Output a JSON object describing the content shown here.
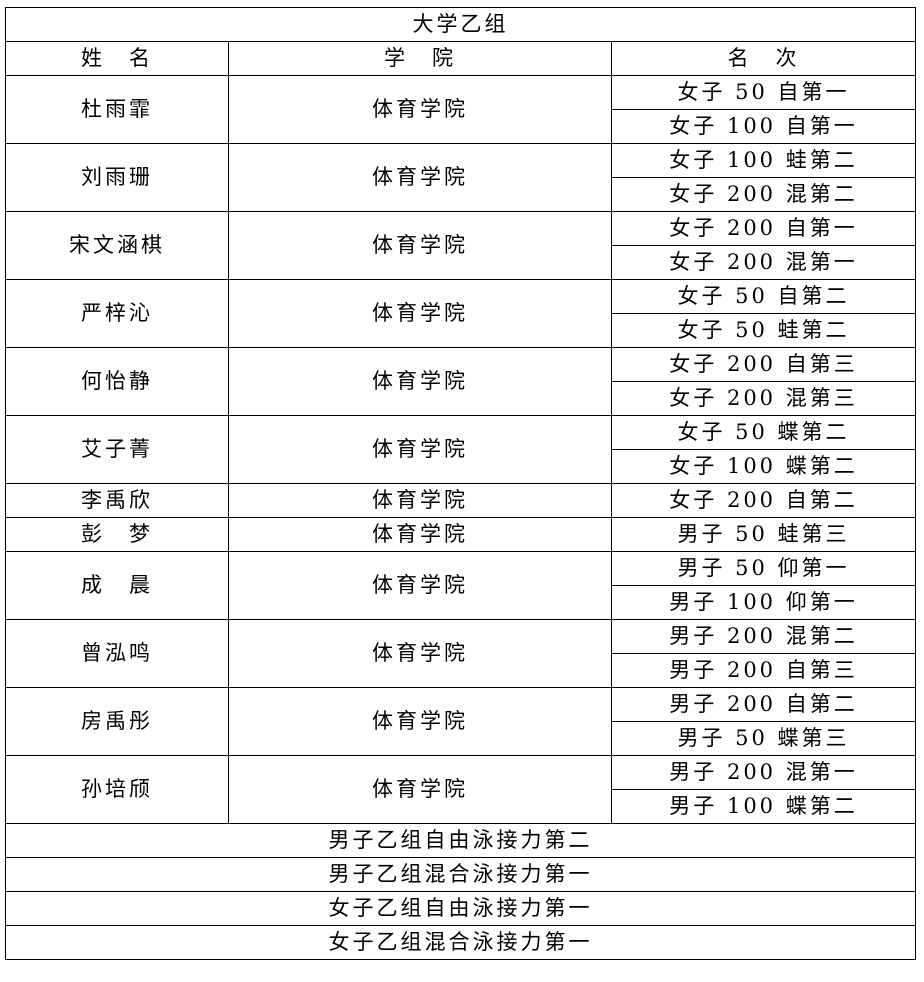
{
  "title": "大学乙组",
  "headers": [
    "姓　名",
    "学　院",
    "名　次"
  ],
  "athletes": [
    {
      "name": "杜雨霏",
      "college": "体育学院",
      "results": [
        "女子 50 自第一",
        "女子 100 自第一"
      ]
    },
    {
      "name": "刘雨珊",
      "college": "体育学院",
      "results": [
        "女子 100 蛙第二",
        "女子 200 混第二"
      ]
    },
    {
      "name": "宋文涵棋",
      "college": "体育学院",
      "results": [
        "女子 200 自第一",
        "女子 200 混第一"
      ]
    },
    {
      "name": "严梓沁",
      "college": "体育学院",
      "results": [
        "女子 50 自第二",
        "女子 50 蛙第二"
      ]
    },
    {
      "name": "何怡静",
      "college": "体育学院",
      "results": [
        "女子 200 自第三",
        "女子 200 混第三"
      ]
    },
    {
      "name": "艾子菁",
      "college": "体育学院",
      "results": [
        "女子 50 蝶第二",
        "女子 100 蝶第二"
      ]
    },
    {
      "name": "李禹欣",
      "college": "体育学院",
      "results": [
        "女子 200 自第二"
      ]
    },
    {
      "name": "彭　梦",
      "college": "体育学院",
      "results": [
        "男子 50 蛙第三"
      ]
    },
    {
      "name": "成　晨",
      "college": "体育学院",
      "results": [
        "男子 50 仰第一",
        "男子 100 仰第一"
      ]
    },
    {
      "name": "曾泓鸣",
      "college": "体育学院",
      "results": [
        "男子 200 混第二",
        "男子 200 自第三"
      ]
    },
    {
      "name": "房禹彤",
      "college": "体育学院",
      "results": [
        "男子 200 自第二",
        "男子 50 蝶第三"
      ]
    },
    {
      "name": "孙培颀",
      "college": "体育学院",
      "results": [
        "男子 200 混第一",
        "男子 100 蝶第二"
      ]
    }
  ],
  "relays": [
    "男子乙组自由泳接力第二",
    "男子乙组混合泳接力第一",
    "女子乙组自由泳接力第一",
    "女子乙组混合泳接力第一"
  ]
}
